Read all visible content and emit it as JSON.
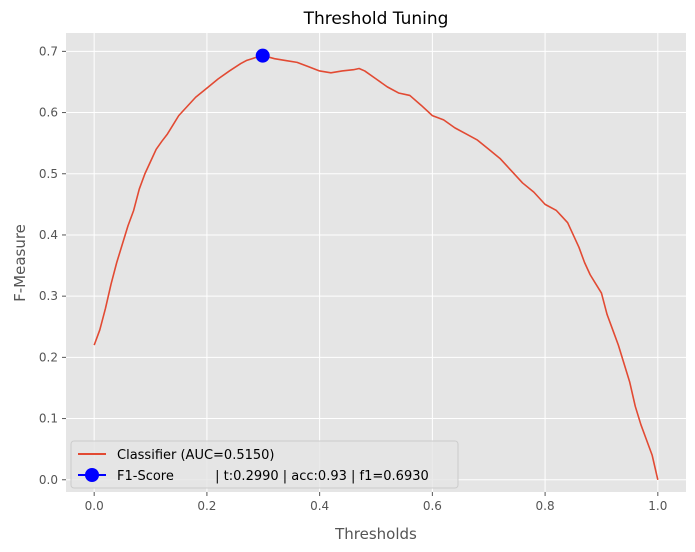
{
  "chart_data": {
    "type": "line",
    "title": "Threshold Tuning",
    "xlabel": "Thresholds",
    "ylabel": "F-Measure",
    "xlim": [
      -0.05,
      1.05
    ],
    "ylim": [
      -0.02,
      0.73
    ],
    "x_ticks": [
      0.0,
      0.2,
      0.4,
      0.6,
      0.8,
      1.0
    ],
    "x_tick_labels": [
      "0.0",
      "0.2",
      "0.4",
      "0.6",
      "0.8",
      "1.0"
    ],
    "y_ticks": [
      0.0,
      0.1,
      0.2,
      0.3,
      0.4,
      0.5,
      0.6,
      0.7
    ],
    "y_tick_labels": [
      "0.0",
      "0.1",
      "0.2",
      "0.3",
      "0.4",
      "0.5",
      "0.6",
      "0.7"
    ],
    "grid": true,
    "background_color": "#e5e5e5",
    "legend_location": "lower-left",
    "series": [
      {
        "name": "Classifier (AUC=0.5150)",
        "color": "#e24a33",
        "x": [
          0.0,
          0.01,
          0.02,
          0.03,
          0.04,
          0.05,
          0.06,
          0.07,
          0.08,
          0.09,
          0.1,
          0.11,
          0.12,
          0.13,
          0.14,
          0.15,
          0.16,
          0.17,
          0.18,
          0.2,
          0.22,
          0.24,
          0.26,
          0.27,
          0.28,
          0.29,
          0.3,
          0.32,
          0.34,
          0.36,
          0.38,
          0.4,
          0.42,
          0.44,
          0.46,
          0.47,
          0.48,
          0.5,
          0.52,
          0.54,
          0.56,
          0.58,
          0.6,
          0.62,
          0.64,
          0.66,
          0.68,
          0.7,
          0.72,
          0.74,
          0.76,
          0.78,
          0.8,
          0.82,
          0.83,
          0.84,
          0.85,
          0.86,
          0.87,
          0.88,
          0.89,
          0.9,
          0.91,
          0.92,
          0.93,
          0.94,
          0.95,
          0.96,
          0.97,
          0.98,
          0.99,
          0.995,
          1.0
        ],
        "y": [
          0.22,
          0.245,
          0.28,
          0.32,
          0.355,
          0.385,
          0.415,
          0.44,
          0.475,
          0.5,
          0.52,
          0.54,
          0.553,
          0.565,
          0.58,
          0.595,
          0.605,
          0.615,
          0.625,
          0.64,
          0.655,
          0.668,
          0.68,
          0.685,
          0.688,
          0.691,
          0.693,
          0.688,
          0.685,
          0.682,
          0.675,
          0.668,
          0.665,
          0.668,
          0.67,
          0.672,
          0.668,
          0.655,
          0.642,
          0.632,
          0.628,
          0.612,
          0.595,
          0.588,
          0.575,
          0.565,
          0.555,
          0.54,
          0.525,
          0.505,
          0.485,
          0.47,
          0.45,
          0.44,
          0.43,
          0.42,
          0.4,
          0.38,
          0.355,
          0.335,
          0.32,
          0.305,
          0.27,
          0.245,
          0.22,
          0.19,
          0.16,
          0.12,
          0.09,
          0.065,
          0.04,
          0.02,
          0.0
        ]
      },
      {
        "name": "F1-Score          | t:0.2990 | acc:0.93 | f1=0.6930",
        "color": "#0000ff",
        "marker": "circle",
        "x": [
          0.299
        ],
        "y": [
          0.693
        ]
      }
    ]
  }
}
